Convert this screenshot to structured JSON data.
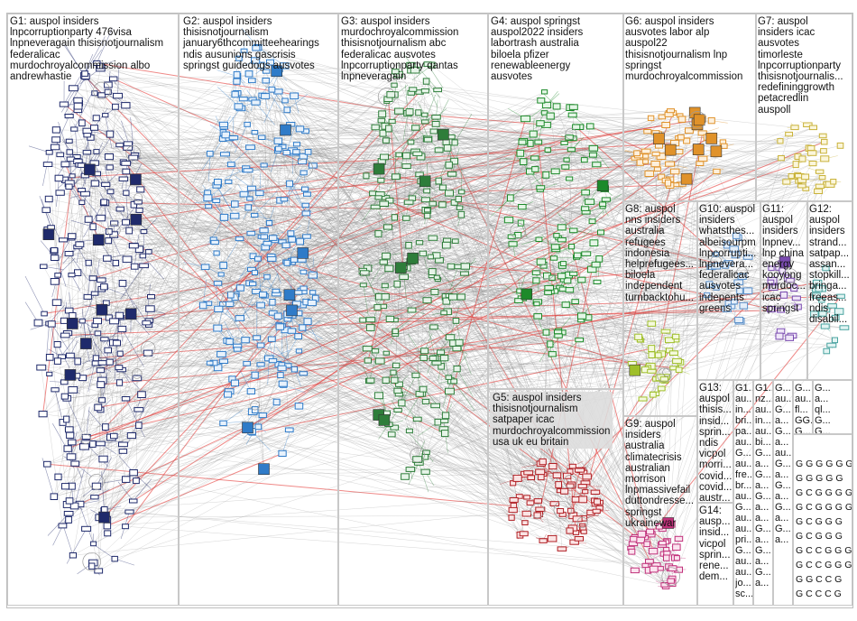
{
  "title": "",
  "groups": [
    {
      "id": "G1",
      "text": "G1: auspol insiders\nlnpcorruptionparty 476visa\nlnpneveragain thisisnotjournalism\nfederalicac\nmurdochroyalcommission albo\nandrewhastie"
    },
    {
      "id": "G2",
      "text": "G2: auspol insiders\nthisisnotjournalism\njanuary6thcommitteehearings\nndis ausunions gascrisis\nspringst guidedogs ausvotes"
    },
    {
      "id": "G3",
      "text": "G3: auspol insiders\nmurdochroyalcommission\nthisisnotjournalism abc\nfederalicac ausvotes\nlnpcorruptionparty qantas\nlnpneveragain"
    },
    {
      "id": "G4",
      "text": "G4: auspol springst\nauspol2022 insiders\nlabortrash australia\nbiloela pfizer\nrenewableenergy\nausvotes"
    },
    {
      "id": "G5",
      "text": "G5: auspol insiders\nthisisnotjournalism\nsatpaper icac\nmurdochroyalcommission\nusa uk eu britain"
    },
    {
      "id": "G6",
      "text": "G6: auspol insiders\nausvotes labor alp\nauspol22\nthisisnotjournalism lnp\nspringst\nmurdochroyalcommission"
    },
    {
      "id": "G7",
      "text": "G7: auspol\ninsiders icac\nausvotes\ntimorleste\nlnpcorruptionparty\nthisisnotjournalis...\nredefininggrowth\npetacredlin\nauspoll"
    },
    {
      "id": "G8",
      "text": "G8: auspol\nnns insiders\naustralia\nrefugees\nindonesia\nhelprefugees...\nbiloela\nindependent\nturnbacktohu..."
    },
    {
      "id": "G9",
      "text": "G9: auspol\ninsiders\naustralia\nclimatecrisis\naustralian\nmorrison\nlnpmassivefail\nduttondresse...\nspringst\nukrainewar"
    },
    {
      "id": "G10",
      "text": "G10: auspol\ninsiders\nwhatsthes...\nalbeisourpm\nlnpcorrupti...\nlnpnevera...\nfederalicac\nausvotes\nindepents\ngreens"
    },
    {
      "id": "G11",
      "text": "G11:\nauspol\ninsiders\nlnpnev...\nlnp china\nenergy\nkooyong\nmurdoc...\nicac\nspringst"
    },
    {
      "id": "G12",
      "text": "G12:\nauspol\ninsiders\nstrand...\nsatpap...\nassan...\nstopkill...\nbringa...\nfreeas...\nndis\ndisabil..."
    },
    {
      "id": "G13",
      "text": "G13:\nauspol\nthisis...\ninsid...\nsprin...\nndis\nvicpol\nmorri...\ncovid...\ncovid...\naustr..."
    },
    {
      "id": "G14",
      "text": "G14:\nausp...\ninsid...\nvicpol\nsprin...\nrene...\ndem..."
    },
    {
      "id": "G15",
      "text": "G1...\nau...\nin...\nbri...\npa...\nau...\nG...\nau...\nfre...\nbr...\nau...\nG...\nau...\nau...\npri...\nG...\nau...\nau...\njo...\nsc..."
    },
    {
      "id": "G16",
      "text": "G1...\nnz...\nau...\nin...\nau...\nbi...\nG...\na...\nG...\na...\nG...\na...\na...\nG...\na...\nG...\na...\nG...\na..."
    },
    {
      "id": "G17",
      "text": "G...\nau...\nG...\na...\nG...\na...\nau...\nG...\na...\nG...\na...\nG...\na...\nG...\na..."
    },
    {
      "id": "G18",
      "text": "G...\nau...\nfl...\nGG...\nG...\na...\nG...\na...\nG...\na..."
    },
    {
      "id": "G19",
      "text": "G...\na...\nql...\nG...\nG...\nG...\nG...\na..."
    }
  ],
  "mini_tail": "G G G G G G\nG G G G G\nG C G G G G\nG C G G G G\nG C G G G\nG C G G G\nG C C G G G\nG C C G G G\nG G C C G\nG C C C G"
}
